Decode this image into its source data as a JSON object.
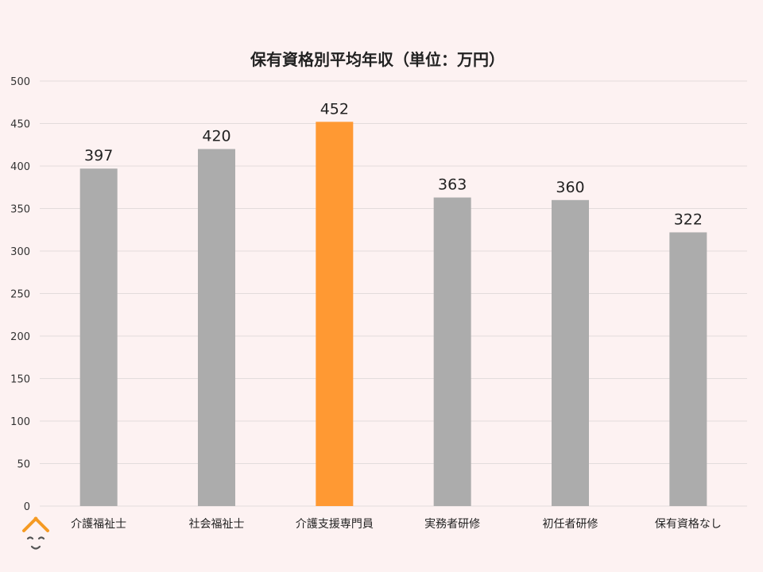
{
  "chart_data": {
    "type": "bar",
    "title": "保有資格別平均年収（単位：万円）",
    "xlabel": "",
    "ylabel": "",
    "categories": [
      "介護福祉士",
      "社会福祉士",
      "介護支援専門員",
      "実務者研修",
      "初任者研修",
      "保有資格なし"
    ],
    "values": [
      397,
      420,
      452,
      363,
      360,
      322
    ],
    "ylim": [
      0,
      500
    ],
    "yticks": [
      0,
      50,
      100,
      150,
      200,
      250,
      300,
      350,
      400,
      450,
      500
    ],
    "grid": true,
    "legend": "none",
    "bar_color": "#acacac",
    "highlight_color": "#ff9933",
    "highlight_category": "介護支援専門員"
  },
  "colors": {
    "background": "#fdf2f2",
    "gridline": "#e3dcdc",
    "logo_accent": "#f59a23",
    "logo_face": "#555555"
  },
  "logo": {
    "icon": "person-face-icon"
  }
}
